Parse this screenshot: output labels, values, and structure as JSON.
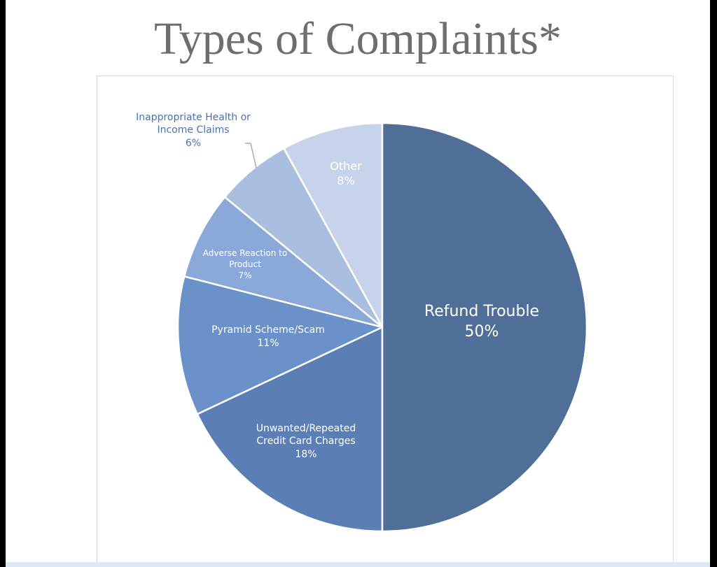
{
  "chart_data": {
    "type": "pie",
    "title": "Types of Complaints*",
    "categories": [
      "Refund Trouble",
      "Unwanted/Repeated Credit Card Charges",
      "Pyramid Scheme/Scam",
      "Adverse Reaction to Product",
      "Inappropriate Health or Income Claims",
      "Other"
    ],
    "values": [
      50,
      18,
      11,
      7,
      6,
      8
    ],
    "value_labels": [
      "50%",
      "18%",
      "11%",
      "7%",
      "6%",
      "8%"
    ],
    "colors": [
      "#506f98",
      "#5b7fb5",
      "#6a91c9",
      "#8aa8d8",
      "#aabedf",
      "#c7d3ea"
    ]
  }
}
